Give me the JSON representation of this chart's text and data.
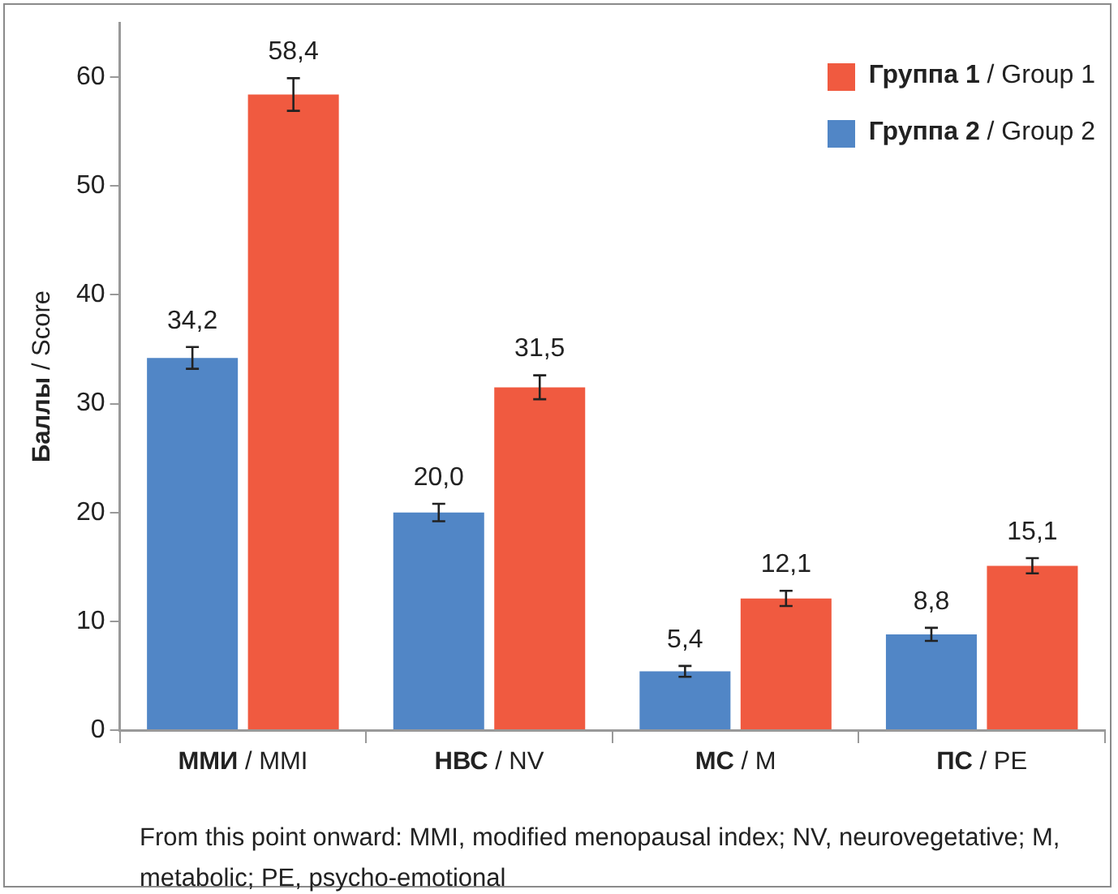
{
  "chart_data": {
    "type": "bar",
    "ylabel": "Баллы / Score",
    "categories": [
      "ММИ / MMI",
      "НВС / NV",
      "МС / M",
      "ПС / PE"
    ],
    "series": [
      {
        "name": "Группа 2 / Group 2",
        "color": "#5186c6",
        "values": [
          34.2,
          20.0,
          5.4,
          8.8
        ],
        "errors": [
          1.0,
          0.8,
          0.5,
          0.6
        ],
        "value_labels": [
          "34,2",
          "20,0",
          "5,4",
          "8,8"
        ]
      },
      {
        "name": "Группа 1 / Group 1",
        "color": "#f05a40",
        "values": [
          58.4,
          31.5,
          12.1,
          15.1
        ],
        "errors": [
          1.5,
          1.1,
          0.7,
          0.7
        ],
        "value_labels": [
          "58,4",
          "31,5",
          "12,1",
          "15,1"
        ]
      }
    ],
    "ylim": [
      0,
      65
    ],
    "yticks": [
      0,
      10,
      20,
      30,
      40,
      50,
      60
    ],
    "grid": false,
    "legend": "top right",
    "annotations": [
      "From this point onward: MMI, modified menopausal index; NV, neurovegetative; M, metabolic; PE, psycho-emotional"
    ]
  }
}
